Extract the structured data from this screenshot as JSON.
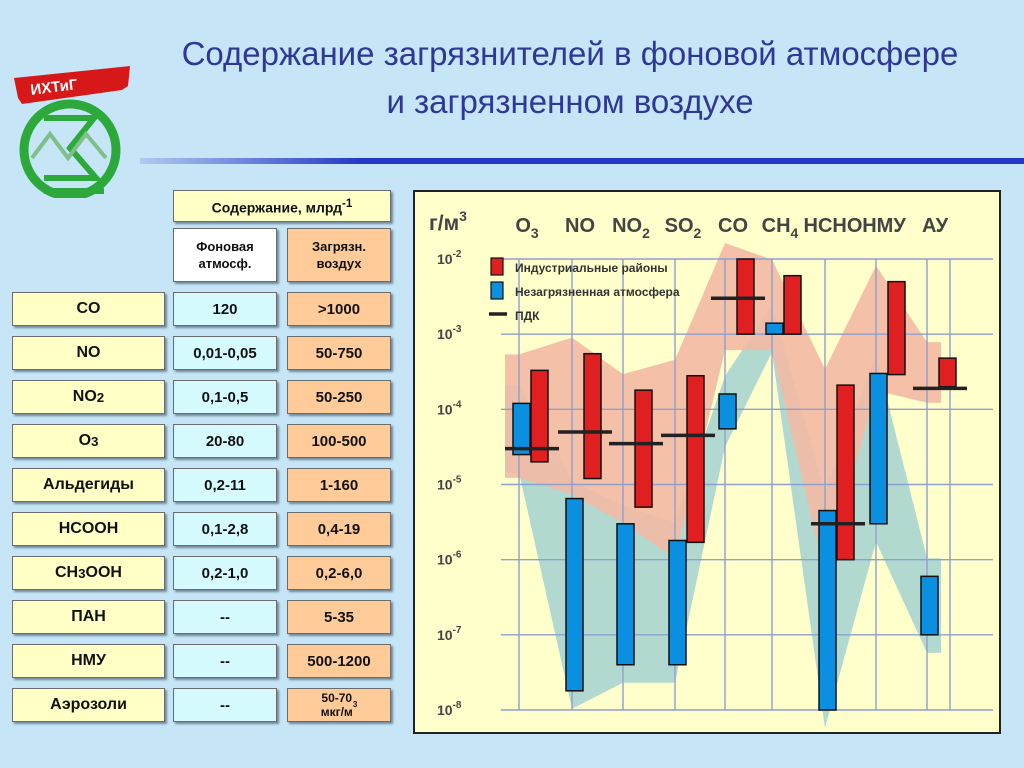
{
  "slide": {
    "title": "Содержание загрязнителей в фоновой атмосфере и загрязненном воздухе",
    "title_color": "#2f3797",
    "accent_color": "#2538c8",
    "background_color": "#c6e6f7",
    "logo_text": "ИХТиГ"
  },
  "table": {
    "header": "Содержание, млрд-1",
    "col_background": "Фоновая атмосф.",
    "col_polluted": "Загрязн. воздух",
    "rows": [
      {
        "name": "CO",
        "background": "120",
        "polluted": ">1000"
      },
      {
        "name": "NO",
        "background": "0,01-0,05",
        "polluted": "50-750"
      },
      {
        "name": "NO2",
        "background": "0,1-0,5",
        "polluted": "50-250"
      },
      {
        "name": "O3",
        "background": "20-80",
        "polluted": "100-500"
      },
      {
        "name": "Альдегиды",
        "background": "0,2-11",
        "polluted": "1-160"
      },
      {
        "name": "HCOOH",
        "background": "0,1-2,8",
        "polluted": "0,4-19"
      },
      {
        "name": "CH3OOH",
        "background": "0,2-1,0",
        "polluted": "0,2-6,0"
      },
      {
        "name": "ПАН",
        "background": "--",
        "polluted": "5-35"
      },
      {
        "name": "НМУ",
        "background": "--",
        "polluted": "500-1200"
      },
      {
        "name": "Аэрозоли",
        "background": "--",
        "polluted": "50-70 мкг/м3"
      }
    ]
  },
  "chart_data": {
    "type": "bar",
    "ylabel": "г/м3",
    "y_scale": "log",
    "ylim": [
      1e-08,
      0.01
    ],
    "y_ticks": [
      "10-2",
      "10-3",
      "10-4",
      "10-5",
      "10-6",
      "10-7",
      "10-8"
    ],
    "categories": [
      "O3",
      "NO",
      "NO2",
      "SO2",
      "CO",
      "CH4",
      "HCHO",
      "НМУ",
      "АУ"
    ],
    "grid": true,
    "legend_position": "top-left",
    "legend": [
      {
        "label": "Индустриальные районы",
        "color": "#e02020"
      },
      {
        "label": "Незагрязненная атмосфера",
        "color": "#0b8fe0"
      },
      {
        "label": "ПДК",
        "color": "#222222"
      }
    ],
    "band_colors": {
      "industrial": "#f3b9a4",
      "clean": "#a9d5d0"
    },
    "series": [
      {
        "name": "Незагрязненная атмосфера",
        "ranges": [
          [
            2.5e-05,
            0.00012
          ],
          [
            1.8e-08,
            6.5e-06
          ],
          [
            4e-08,
            3e-06
          ],
          [
            4e-08,
            1.8e-06
          ],
          [
            5.5e-05,
            0.00016
          ],
          [
            0.001,
            0.0014
          ],
          [
            1e-08,
            4.5e-06
          ],
          [
            3e-06,
            0.0003
          ],
          [
            1e-07,
            6e-07
          ]
        ]
      },
      {
        "name": "Индустриальные районы",
        "ranges": [
          [
            2e-05,
            0.00033
          ],
          [
            1.2e-05,
            0.00055
          ],
          [
            5e-06,
            0.00018
          ],
          [
            1.7e-06,
            0.00028
          ],
          [
            0.001,
            0.01
          ],
          [
            0.001,
            0.006
          ],
          [
            1e-06,
            0.00021
          ],
          [
            0.00029,
            0.005
          ],
          [
            0.0002,
            0.00048
          ]
        ]
      },
      {
        "name": "ПДК",
        "values": [
          3e-05,
          5e-05,
          3.5e-05,
          4.5e-05,
          0.003,
          null,
          3e-06,
          null,
          0.00019
        ]
      }
    ]
  }
}
